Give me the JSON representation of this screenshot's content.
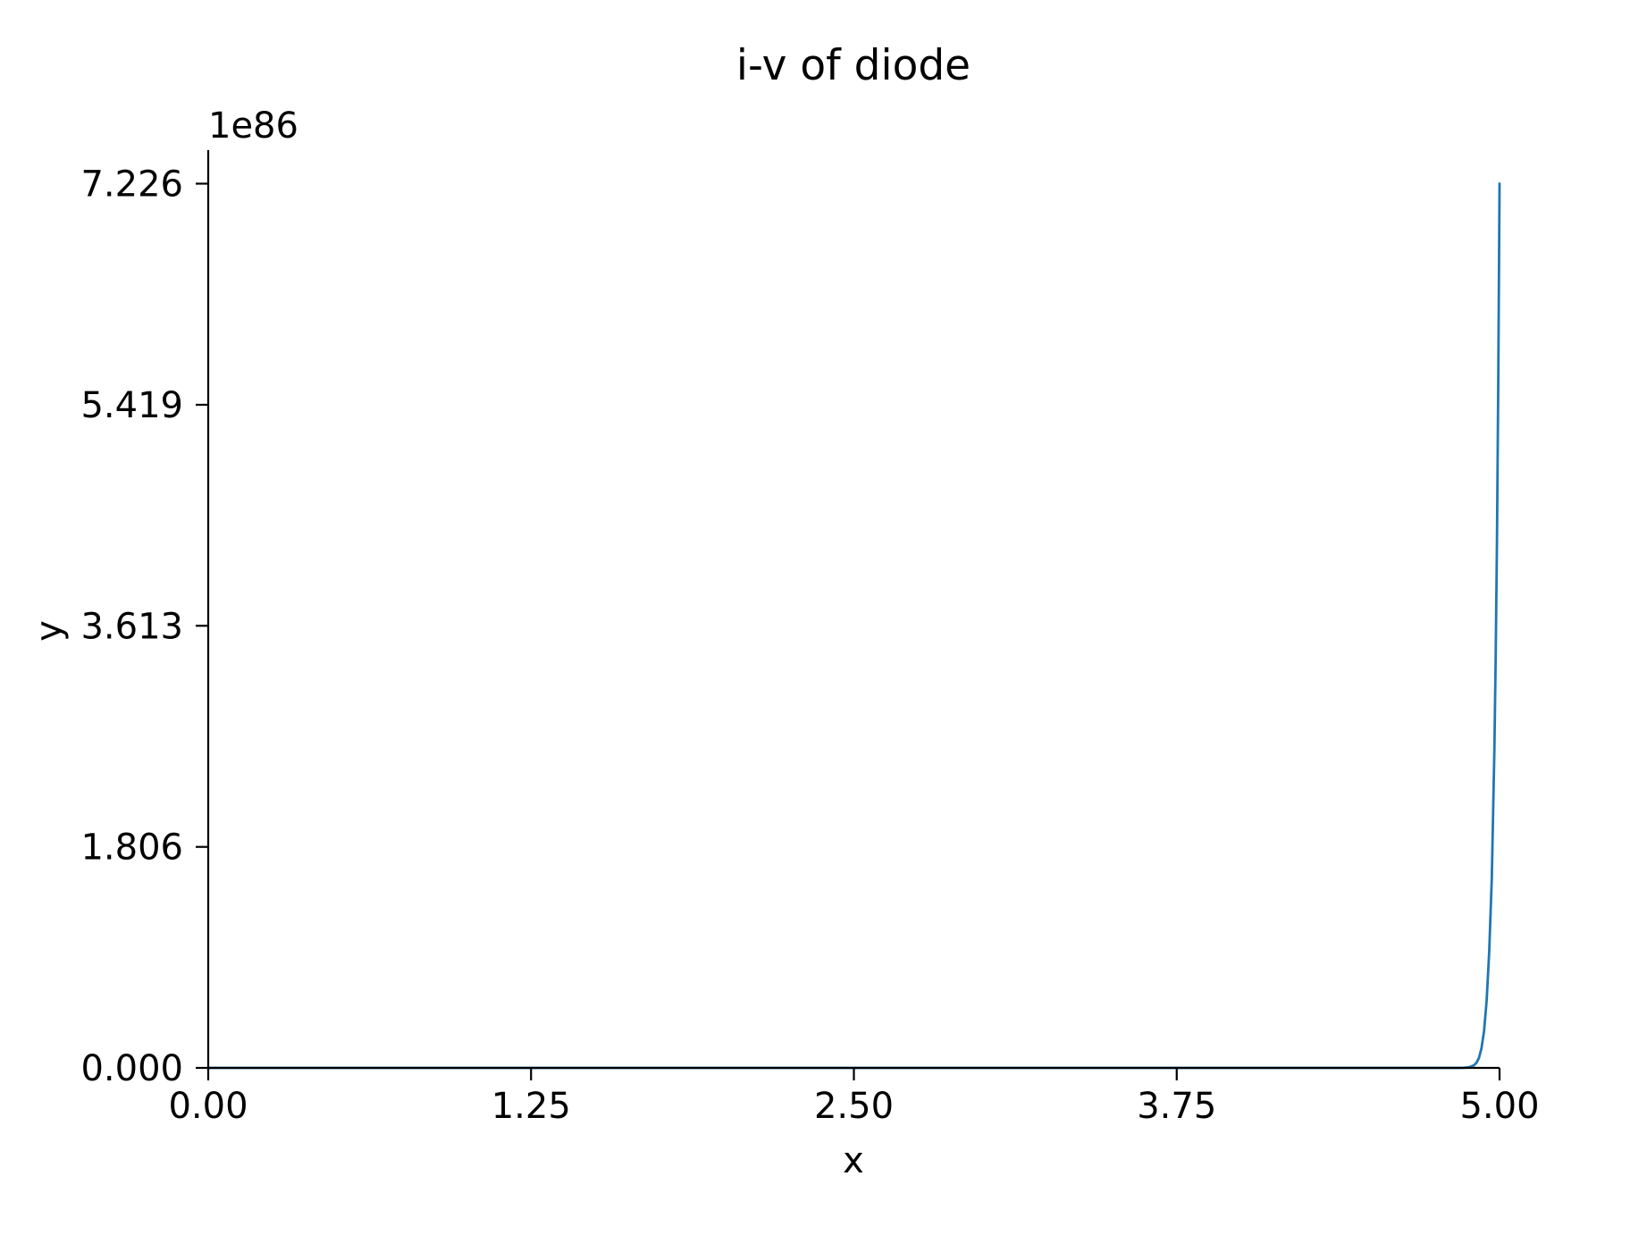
{
  "chart_data": {
    "type": "line",
    "title": "i-v of diode",
    "xlabel": "x",
    "ylabel": "y",
    "y_offset_label": "1e86",
    "xlim": [
      0,
      5
    ],
    "ylim": [
      0,
      7.5
    ],
    "x_ticks": [
      0,
      1.25,
      2.5,
      3.75,
      5
    ],
    "x_tick_labels": [
      "0.00",
      "1.25",
      "2.50",
      "3.75",
      "5.00"
    ],
    "y_ticks": [
      0,
      1.806,
      3.613,
      5.419,
      7.226
    ],
    "y_tick_labels": [
      "0.000",
      "1.806",
      "3.613",
      "5.419",
      "7.226"
    ],
    "grid": false,
    "legend": "none",
    "series_color": "#1f77b4",
    "series": [
      {
        "x": [
          0.0,
          4.7,
          4.75,
          4.8,
          4.82,
          4.84,
          4.86,
          4.88,
          4.9,
          4.91,
          4.92,
          4.93,
          4.94,
          4.95,
          4.96,
          4.97,
          4.98,
          4.985,
          4.99,
          4.995,
          5.0
        ],
        "y": [
          0.0,
          0.0,
          0.0,
          0.0,
          0.0,
          0.0,
          0.001,
          0.004,
          0.02,
          0.04,
          0.08,
          0.16,
          0.3,
          0.55,
          0.95,
          1.55,
          2.6,
          3.35,
          4.3,
          5.6,
          7.226
        ]
      }
    ]
  }
}
